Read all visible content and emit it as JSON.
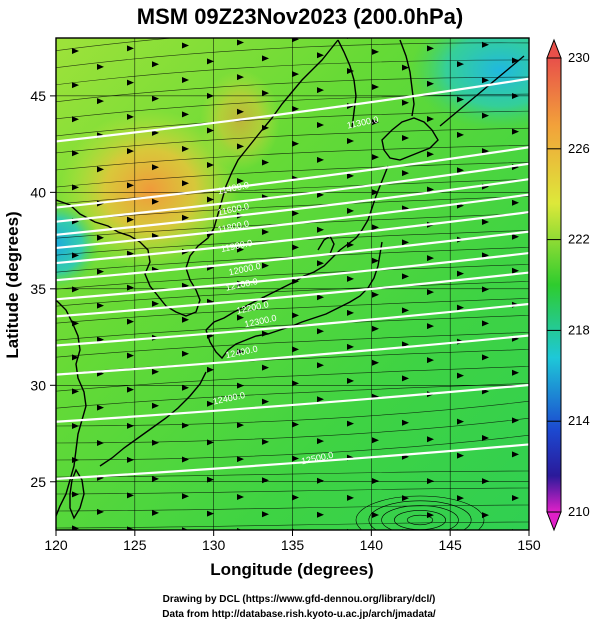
{
  "title": "MSM 09Z23Nov2023 (200.0hPa)",
  "credits": {
    "line1": "Drawing by DCL (https://www.gfd-dennou.org/library/dcl/)",
    "line2": "Data from http://database.rish.kyoto-u.ac.jp/arch/jmadata/"
  },
  "map": {
    "xlabel": "Longitude (degrees)",
    "ylabel": "Latitude  (degrees)",
    "xlim": [
      120,
      150
    ],
    "ylim": [
      22.5,
      48
    ],
    "x_ticks": [
      120,
      125,
      130,
      135,
      140,
      145,
      150
    ],
    "x_tick_labels": [
      "120",
      "125",
      "130",
      "135",
      "140",
      "145",
      "150"
    ],
    "y_ticks": [
      25,
      30,
      35,
      40,
      45
    ],
    "y_tick_labels": [
      "25",
      "30",
      "35",
      "40",
      "45"
    ],
    "gridlines": true,
    "field": "temperature (shaded)",
    "contour_labels": [
      {
        "text": "11400.0",
        "lon": 130.3,
        "lat": 39.9
      },
      {
        "text": "11600.0",
        "lon": 130.3,
        "lat": 38.8
      },
      {
        "text": "11800.0",
        "lon": 130.3,
        "lat": 37.9
      },
      {
        "text": "11900.0",
        "lon": 130.5,
        "lat": 36.9
      },
      {
        "text": "12000.0",
        "lon": 131.0,
        "lat": 35.7
      },
      {
        "text": "12100.0",
        "lon": 130.8,
        "lat": 34.9
      },
      {
        "text": "12200.0",
        "lon": 131.5,
        "lat": 33.7
      },
      {
        "text": "12300.0",
        "lon": 132.0,
        "lat": 33.0
      },
      {
        "text": "12400.0",
        "lon": 130.8,
        "lat": 31.4
      },
      {
        "text": "12400.0",
        "lon": 130.0,
        "lat": 29.0
      },
      {
        "text": "12500.0",
        "lon": 135.6,
        "lat": 25.9
      },
      {
        "text": "11300.0",
        "lon": 138.5,
        "lat": 43.3
      }
    ]
  },
  "colorbar": {
    "min": 210,
    "max": 230,
    "tick_labels": [
      "230",
      "226",
      "222",
      "218",
      "214",
      "210"
    ],
    "tick_values": [
      230,
      226,
      222,
      218,
      214,
      210
    ],
    "colors": {
      "top": "#e8504a",
      "orange": "#f2a23a",
      "yellow": "#dde83a",
      "green": "#2ecc2e",
      "cyan": "#1ec8d8",
      "blue": "#1c48d0",
      "navy": "#2a1a9a",
      "magenta": "#e020c8"
    }
  },
  "colors": {
    "map_base": "#49d63a",
    "warm": "#f2a23a",
    "cool": "#2ec8c0",
    "coast": "#000000",
    "contour": "#ffffff"
  }
}
